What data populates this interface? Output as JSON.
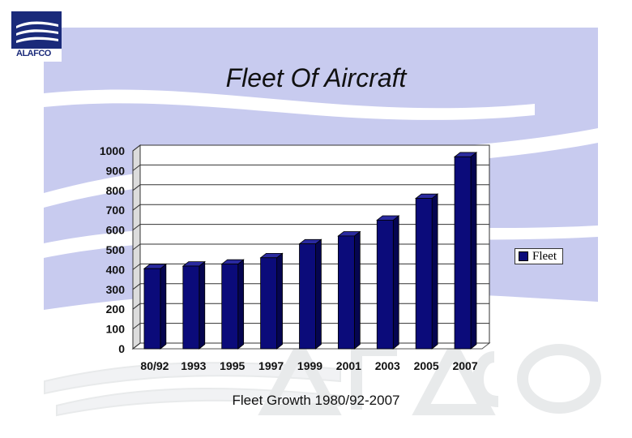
{
  "logo": {
    "text": "ALAFCO"
  },
  "title": "Fleet Of Aircraft",
  "caption": "Fleet Growth 1980/92-2007",
  "colors": {
    "bar_front": "#0b0b7a",
    "bar_side": "#050550",
    "bar_top": "#2a2aa0",
    "background_band": "#c8cbef"
  },
  "chart_data": {
    "type": "bar",
    "categories": [
      "80/92",
      "1993",
      "1995",
      "1997",
      "1999",
      "2001",
      "2003",
      "2005",
      "2007"
    ],
    "series": [
      {
        "name": "Fleet",
        "values": [
          405,
          418,
          428,
          460,
          530,
          570,
          650,
          760,
          970
        ]
      }
    ],
    "ylim": [
      0,
      1000
    ],
    "yticks": [
      0,
      100,
      200,
      300,
      400,
      500,
      600,
      700,
      800,
      900,
      1000
    ],
    "grid": true,
    "legend": "right",
    "style": "3d-bar"
  }
}
